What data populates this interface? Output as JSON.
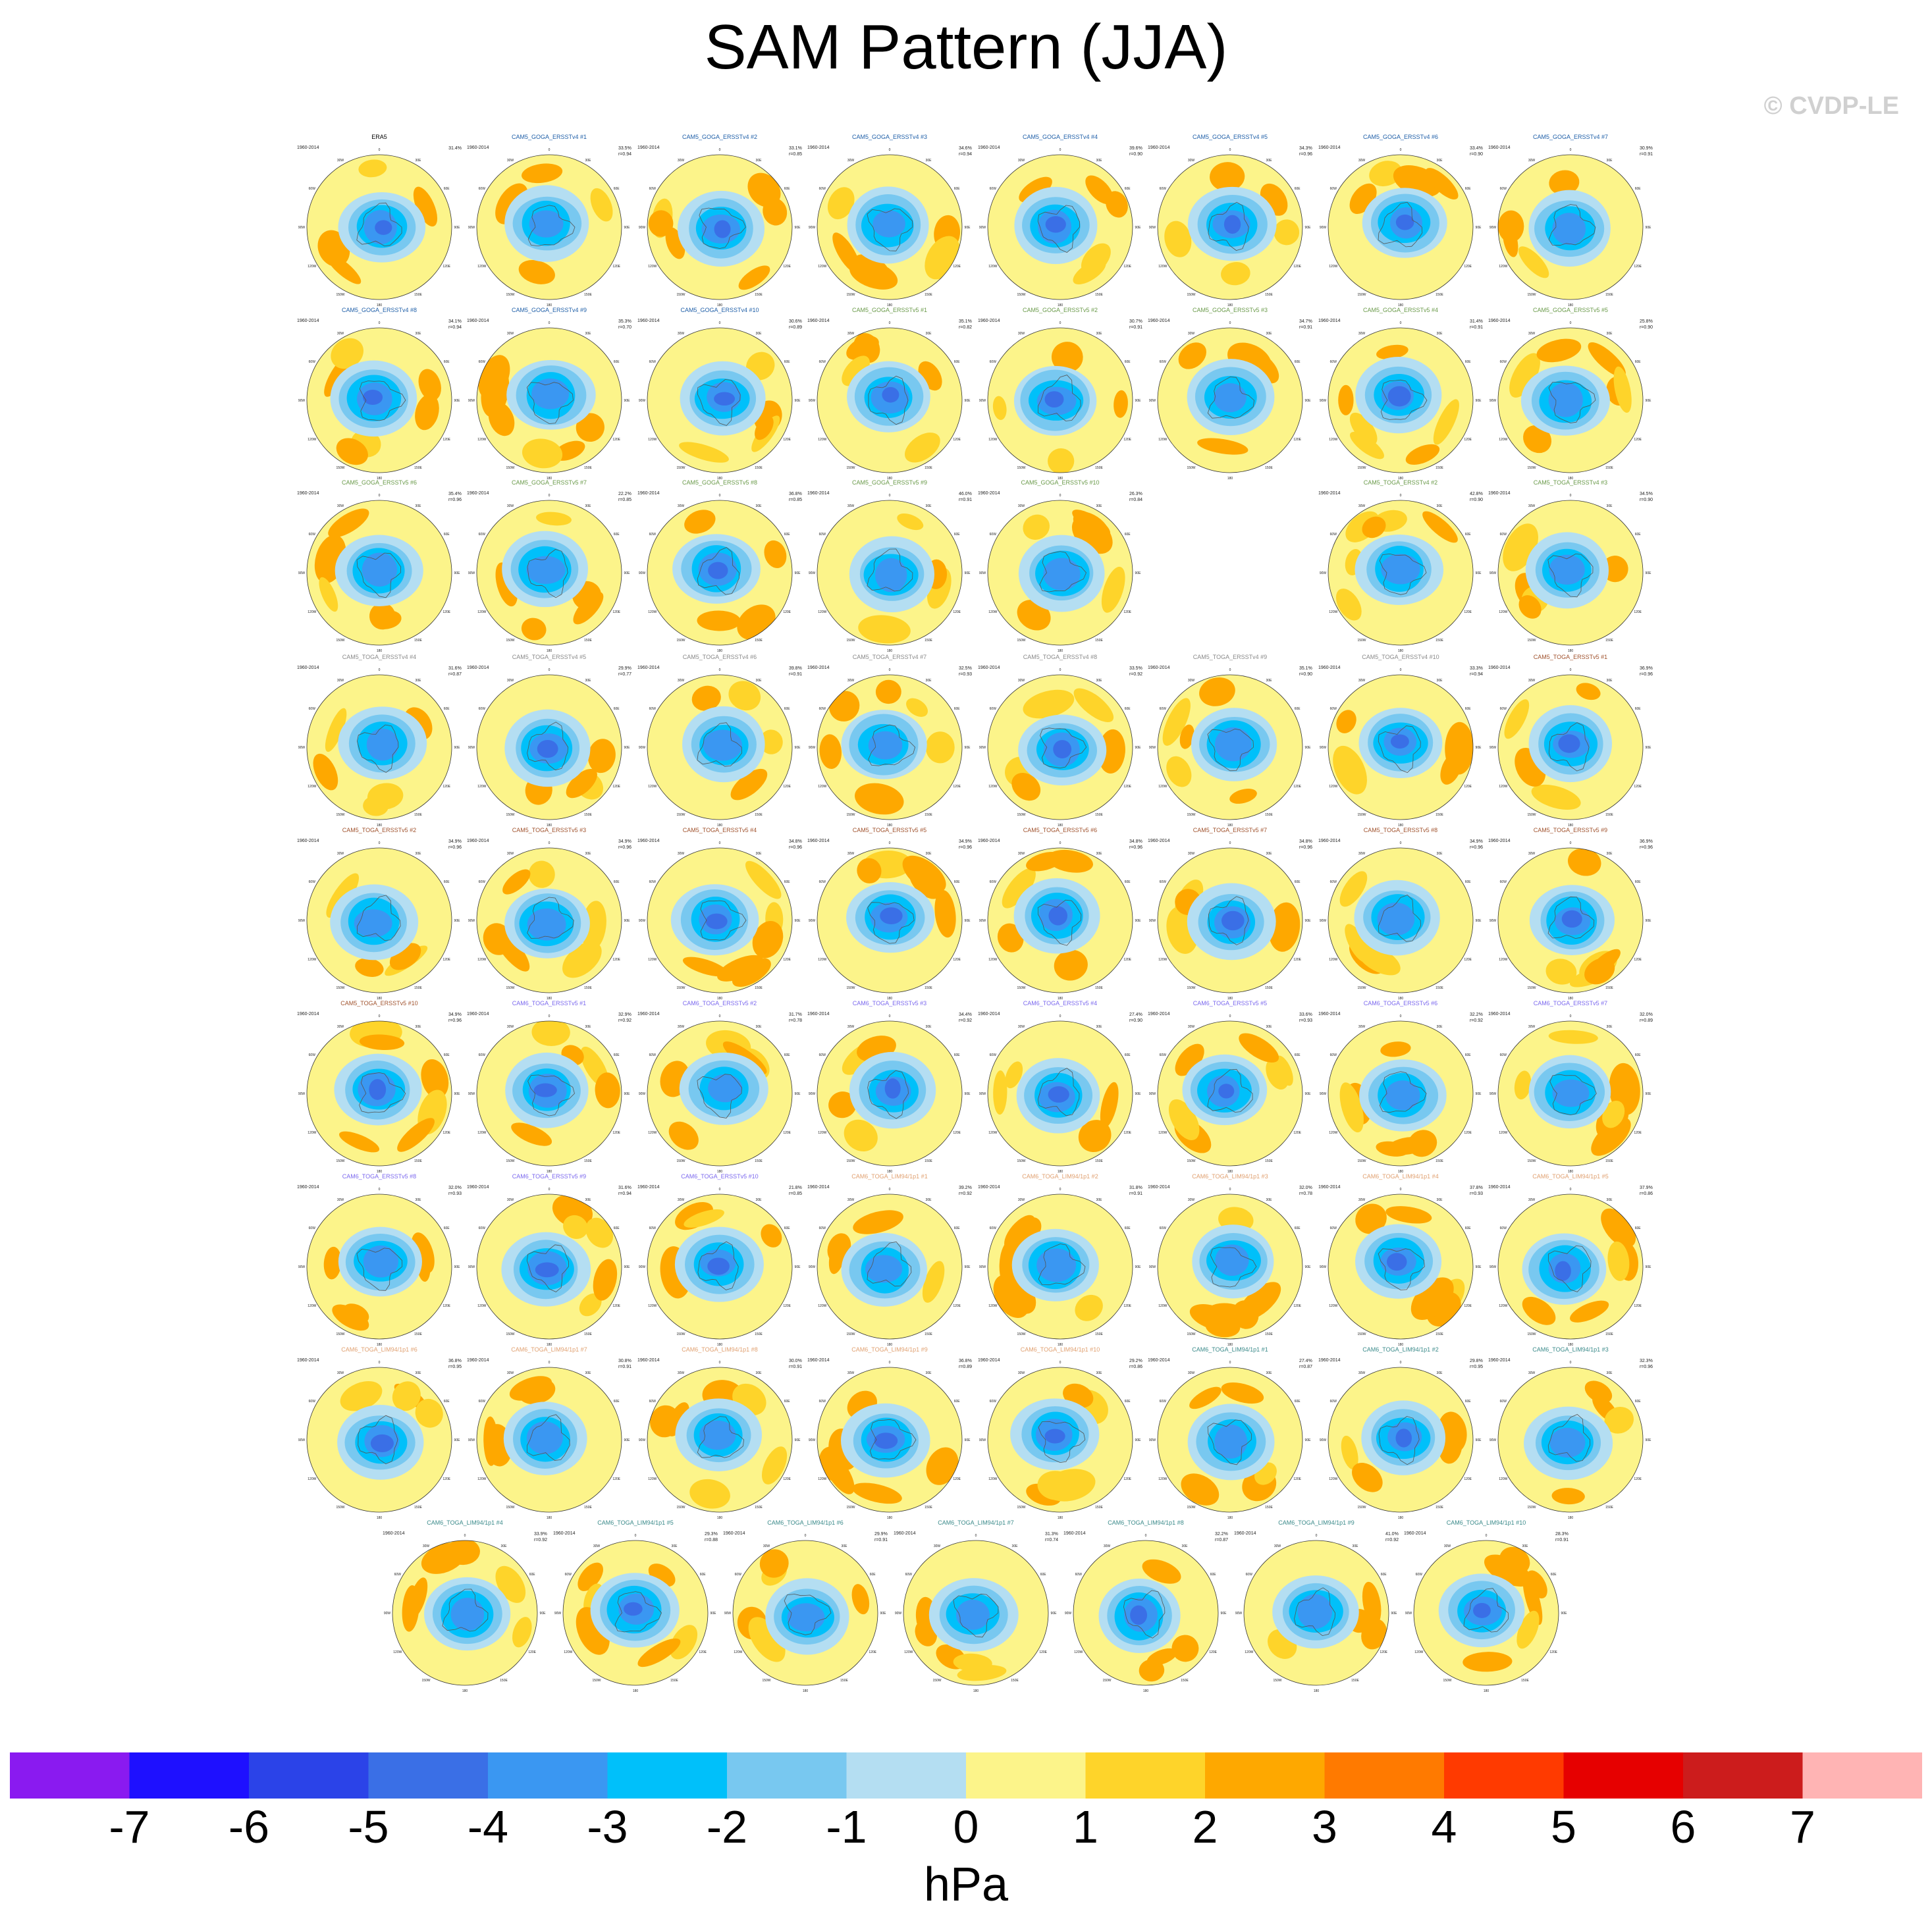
{
  "title": "SAM Pattern (JJA)",
  "copyright": "© CVDP-LE",
  "chart_data": {
    "type": "heatmap",
    "title": "SAM Pattern (JJA)",
    "units": "hPa",
    "colorbar": {
      "ticks": [
        "-7",
        "-6",
        "-5",
        "-4",
        "-3",
        "-2",
        "-1",
        "0",
        "1",
        "2",
        "3",
        "4",
        "5",
        "6",
        "7"
      ],
      "colors": [
        "#8a1af0",
        "#1e10ff",
        "#2b43e8",
        "#3a6fe6",
        "#3a97f2",
        "#00c0fa",
        "#78c8f0",
        "#b4def2",
        "#fcf48a",
        "#fed42a",
        "#fea800",
        "#ff7a00",
        "#ff3a00",
        "#e60000",
        "#cc1c1c",
        "#ffb4b4"
      ],
      "colors_note": "16 levels, below -7 through above 7"
    },
    "panel_period": "1960-2014",
    "panel_axis_labels": [
      "0",
      "30E",
      "60E",
      "90E",
      "120E",
      "150E",
      "180",
      "150W",
      "120W",
      "90W",
      "60W",
      "30W"
    ],
    "panels": [
      {
        "name": "ERA5",
        "pct": "31.4%",
        "r": ""
      },
      {
        "name": "CAM5_GOGA_ERSSTv4 #1",
        "pct": "33.5%",
        "r": "r=0.94"
      },
      {
        "name": "CAM5_GOGA_ERSSTv4 #2",
        "pct": "33.1%",
        "r": "r=0.85"
      },
      {
        "name": "CAM5_GOGA_ERSSTv4 #3",
        "pct": "34.6%",
        "r": "r=0.94"
      },
      {
        "name": "CAM5_GOGA_ERSSTv4 #4",
        "pct": "39.6%",
        "r": "r=0.90"
      },
      {
        "name": "CAM5_GOGA_ERSSTv4 #5",
        "pct": "34.3%",
        "r": "r=0.96"
      },
      {
        "name": "CAM5_GOGA_ERSSTv4 #6",
        "pct": "33.4%",
        "r": "r=0.90"
      },
      {
        "name": "CAM5_GOGA_ERSSTv4 #7",
        "pct": "30.9%",
        "r": "r=0.91"
      },
      {
        "name": "CAM5_GOGA_ERSSTv4 #8",
        "pct": "34.1%",
        "r": "r=0.94"
      },
      {
        "name": "CAM5_GOGA_ERSSTv4 #9",
        "pct": "35.3%",
        "r": "r=0.70"
      },
      {
        "name": "CAM5_GOGA_ERSSTv4 #10",
        "pct": "30.6%",
        "r": "r=0.89"
      },
      {
        "name": "CAM5_GOGA_ERSSTv5 #1",
        "pct": "35.1%",
        "r": "r=0.82"
      },
      {
        "name": "CAM5_GOGA_ERSSTv5 #2",
        "pct": "30.7%",
        "r": "r=0.91"
      },
      {
        "name": "CAM5_GOGA_ERSSTv5 #3",
        "pct": "34.7%",
        "r": "r=0.91"
      },
      {
        "name": "CAM5_GOGA_ERSSTv5 #4",
        "pct": "31.4%",
        "r": "r=0.91"
      },
      {
        "name": "CAM5_GOGA_ERSSTv5 #5",
        "pct": "25.8%",
        "r": "r=0.90"
      },
      {
        "name": "CAM5_GOGA_ERSSTv5 #6",
        "pct": "35.4%",
        "r": "r=0.96"
      },
      {
        "name": "CAM5_GOGA_ERSSTv5 #7",
        "pct": "22.2%",
        "r": "r=0.85"
      },
      {
        "name": "CAM5_GOGA_ERSSTv5 #8",
        "pct": "36.8%",
        "r": "r=0.85"
      },
      {
        "name": "CAM5_GOGA_ERSSTv5 #9",
        "pct": "46.0%",
        "r": "r=0.91"
      },
      {
        "name": "CAM5_GOGA_ERSSTv5 #10",
        "pct": "26.3%",
        "r": "r=0.84"
      },
      {
        "name": "CAM5_TOGA_ERSSTv4 #2",
        "pct": "42.8%",
        "r": "r=0.90"
      },
      {
        "name": "CAM5_TOGA_ERSSTv4 #3",
        "pct": "34.5%",
        "r": "r=0.90"
      },
      {
        "name": "CAM5_TOGA_ERSSTv4 #4",
        "pct": "31.6%",
        "r": "r=0.87"
      },
      {
        "name": "CAM5_TOGA_ERSSTv4 #5",
        "pct": "29.9%",
        "r": "r=0.77"
      },
      {
        "name": "CAM5_TOGA_ERSSTv4 #6",
        "pct": "39.8%",
        "r": "r=0.91"
      },
      {
        "name": "CAM5_TOGA_ERSSTv4 #7",
        "pct": "32.5%",
        "r": "r=0.93"
      },
      {
        "name": "CAM5_TOGA_ERSSTv4 #8",
        "pct": "33.5%",
        "r": "r=0.92"
      },
      {
        "name": "CAM5_TOGA_ERSSTv4 #9",
        "pct": "35.1%",
        "r": "r=0.90"
      },
      {
        "name": "CAM5_TOGA_ERSSTv4 #10",
        "pct": "33.3%",
        "r": "r=0.94"
      },
      {
        "name": "CAM5_TOGA_ERSSTv5 #1",
        "pct": "36.9%",
        "r": "r=0.96"
      },
      {
        "name": "CAM5_TOGA_ERSSTv5 #2",
        "pct": "34.9%",
        "r": "r=0.96"
      },
      {
        "name": "CAM5_TOGA_ERSSTv5 #3",
        "pct": "34.9%",
        "r": "r=0.96"
      },
      {
        "name": "CAM5_TOGA_ERSSTv5 #4",
        "pct": "34.8%",
        "r": "r=0.96"
      },
      {
        "name": "CAM5_TOGA_ERSSTv5 #5",
        "pct": "34.9%",
        "r": "r=0.96"
      },
      {
        "name": "CAM5_TOGA_ERSSTv5 #6",
        "pct": "34.8%",
        "r": "r=0.96"
      },
      {
        "name": "CAM5_TOGA_ERSSTv5 #7",
        "pct": "34.8%",
        "r": "r=0.96"
      },
      {
        "name": "CAM5_TOGA_ERSSTv5 #8",
        "pct": "34.9%",
        "r": "r=0.96"
      },
      {
        "name": "CAM5_TOGA_ERSSTv5 #9",
        "pct": "36.9%",
        "r": "r=0.96"
      },
      {
        "name": "CAM5_TOGA_ERSSTv5 #10",
        "pct": "34.9%",
        "r": "r=0.96"
      },
      {
        "name": "CAM6_TOGA_ERSSTv5 #1",
        "pct": "32.9%",
        "r": "r=0.92"
      },
      {
        "name": "CAM6_TOGA_ERSSTv5 #2",
        "pct": "31.7%",
        "r": "r=0.78"
      },
      {
        "name": "CAM6_TOGA_ERSSTv5 #3",
        "pct": "34.4%",
        "r": "r=0.92"
      },
      {
        "name": "CAM6_TOGA_ERSSTv5 #4",
        "pct": "27.4%",
        "r": "r=0.90"
      },
      {
        "name": "CAM6_TOGA_ERSSTv5 #5",
        "pct": "33.6%",
        "r": "r=0.93"
      },
      {
        "name": "CAM6_TOGA_ERSSTv5 #6",
        "pct": "32.2%",
        "r": "r=0.92"
      },
      {
        "name": "CAM6_TOGA_ERSSTv5 #7",
        "pct": "32.0%",
        "r": "r=0.89"
      },
      {
        "name": "CAM6_TOGA_ERSSTv5 #8",
        "pct": "32.0%",
        "r": "r=0.93"
      },
      {
        "name": "CAM6_TOGA_ERSSTv5 #9",
        "pct": "31.6%",
        "r": "r=0.94"
      },
      {
        "name": "CAM6_TOGA_ERSSTv5 #10",
        "pct": "21.8%",
        "r": "r=0.85"
      },
      {
        "name": "CAM6_TOGA_LIM94/1p1 #1",
        "pct": "39.2%",
        "r": "r=0.92"
      },
      {
        "name": "CAM6_TOGA_LIM94/1p1 #2",
        "pct": "31.8%",
        "r": "r=0.91"
      },
      {
        "name": "CAM6_TOGA_LIM94/1p1 #3",
        "pct": "32.0%",
        "r": "r=0.78"
      },
      {
        "name": "CAM6_TOGA_LIM94/1p1 #4",
        "pct": "37.8%",
        "r": "r=0.93"
      },
      {
        "name": "CAM6_TOGA_LIM94/1p1 #5",
        "pct": "37.9%",
        "r": "r=0.86"
      },
      {
        "name": "CAM6_TOGA_LIM94/1p1 #6",
        "pct": "36.8%",
        "r": "r=0.95"
      },
      {
        "name": "CAM6_TOGA_LIM94/1p1 #7",
        "pct": "30.8%",
        "r": "r=0.91"
      },
      {
        "name": "CAM6_TOGA_LIM94/1p1 #8",
        "pct": "30.0%",
        "r": "r=0.91"
      },
      {
        "name": "CAM6_TOGA_LIM94/1p1 #9",
        "pct": "36.8%",
        "r": "r=0.89"
      },
      {
        "name": "CAM6_TOGA_LIM94/1p1 #10",
        "pct": "29.2%",
        "r": "r=0.86"
      },
      {
        "name": "CAM6_TOGA_LIM94/1p1 #1",
        "pct": "27.4%",
        "r": "r=0.87"
      },
      {
        "name": "CAM6_TOGA_LIM94/1p1 #2",
        "pct": "29.8%",
        "r": "r=0.95"
      },
      {
        "name": "CAM6_TOGA_LIM94/1p1 #3",
        "pct": "32.3%",
        "r": "r=0.96"
      },
      {
        "name": "CAM6_TOGA_LIM94/1p1 #4",
        "pct": "33.9%",
        "r": "r=0.92"
      },
      {
        "name": "CAM6_TOGA_LIM94/1p1 #5",
        "pct": "29.3%",
        "r": "r=0.88"
      },
      {
        "name": "CAM6_TOGA_LIM94/1p1 #6",
        "pct": "29.9%",
        "r": "r=0.91"
      },
      {
        "name": "CAM6_TOGA_LIM94/1p1 #7",
        "pct": "31.3%",
        "r": "r=0.74"
      },
      {
        "name": "CAM6_TOGA_LIM94/1p1 #8",
        "pct": "32.2%",
        "r": "r=0.87"
      },
      {
        "name": "CAM6_TOGA_LIM94/1p1 #9",
        "pct": "41.0%",
        "r": "r=0.92"
      },
      {
        "name": "CAM6_TOGA_LIM94/1p1 #10",
        "pct": "28.3%",
        "r": "r=0.91"
      }
    ],
    "panel_title_colors": [
      "#000000",
      "#1f5fa8",
      "#1f5fa8",
      "#1f5fa8",
      "#1f5fa8",
      "#1f5fa8",
      "#1f5fa8",
      "#1f5fa8",
      "#1f5fa8",
      "#1f5fa8",
      "#1f5fa8",
      "#6a9a4a",
      "#6a9a4a",
      "#6a9a4a",
      "#6a9a4a",
      "#6a9a4a",
      "#6a9a4a",
      "#6a9a4a",
      "#6a9a4a",
      "#6a9a4a",
      "#6a9a4a",
      "#6a9a4a",
      "#6a9a4a",
      "#8a8a8a",
      "#8a8a8a",
      "#8a8a8a",
      "#8a8a8a",
      "#8a8a8a",
      "#8a8a8a",
      "#8a8a8a",
      "#a0522d",
      "#a0522d",
      "#a0522d",
      "#a0522d",
      "#a0522d",
      "#a0522d",
      "#a0522d",
      "#a0522d",
      "#a0522d",
      "#a0522d",
      "#7b68ee",
      "#7b68ee",
      "#7b68ee",
      "#7b68ee",
      "#7b68ee",
      "#7b68ee",
      "#7b68ee",
      "#7b68ee",
      "#7b68ee",
      "#7b68ee",
      "#e0a070",
      "#e0a070",
      "#e0a070",
      "#e0a070",
      "#e0a070",
      "#e0a070",
      "#e0a070",
      "#e0a070",
      "#e0a070",
      "#e0a070",
      "#3a8a8a",
      "#3a8a8a",
      "#3a8a8a",
      "#3a8a8a",
      "#3a8a8a",
      "#3a8a8a",
      "#3a8a8a",
      "#3a8a8a",
      "#3a8a8a",
      "#3a8a8a"
    ]
  }
}
